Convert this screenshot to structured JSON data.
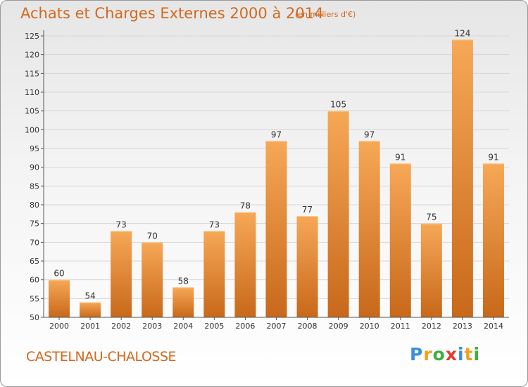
{
  "header": {
    "title": "Achats et Charges Externes 2000 à 2014",
    "unit": "(en milliers d'€)"
  },
  "footer": {
    "town": "CASTELNAU-CHALOSSE",
    "logo_letters": [
      "P",
      "r",
      "o",
      "x",
      "i",
      "t",
      "i"
    ],
    "logo_colors": [
      "#3a8fd8",
      "#f0a21c",
      "#3fae3f",
      "#e23a2e",
      "#3a8fd8",
      "#f0a21c",
      "#3fae3f"
    ]
  },
  "colors": {
    "bar_light": "#f6a857",
    "bar_dark": "#c8681a",
    "text": "#d2691e",
    "axis_label": "#333333",
    "value_label": "#333333"
  },
  "chart_data": {
    "type": "bar",
    "title": "Achats et Charges Externes 2000 à 2014",
    "categories": [
      "2000",
      "2001",
      "2002",
      "2003",
      "2004",
      "2005",
      "2006",
      "2007",
      "2008",
      "2009",
      "2010",
      "2011",
      "2012",
      "2013",
      "2014"
    ],
    "values": [
      60,
      54,
      73,
      70,
      58,
      73,
      78,
      97,
      77,
      105,
      97,
      91,
      75,
      124,
      91
    ],
    "value_labels": [
      "60",
      "54",
      "73",
      "70",
      "58",
      "73",
      "78",
      "97",
      "77",
      "105",
      "97",
      "91",
      "75",
      "124",
      "91"
    ],
    "ylim": [
      50,
      125
    ],
    "yticks": [
      50,
      55,
      60,
      65,
      70,
      75,
      80,
      85,
      90,
      95,
      100,
      105,
      110,
      115,
      120,
      125
    ],
    "ytick_labels": [
      "50",
      "55",
      "60",
      "65",
      "70",
      "75",
      "80",
      "85",
      "90",
      "95",
      "100",
      "105",
      "110",
      "115",
      "120",
      "125"
    ],
    "grid": true,
    "legend": "none"
  }
}
